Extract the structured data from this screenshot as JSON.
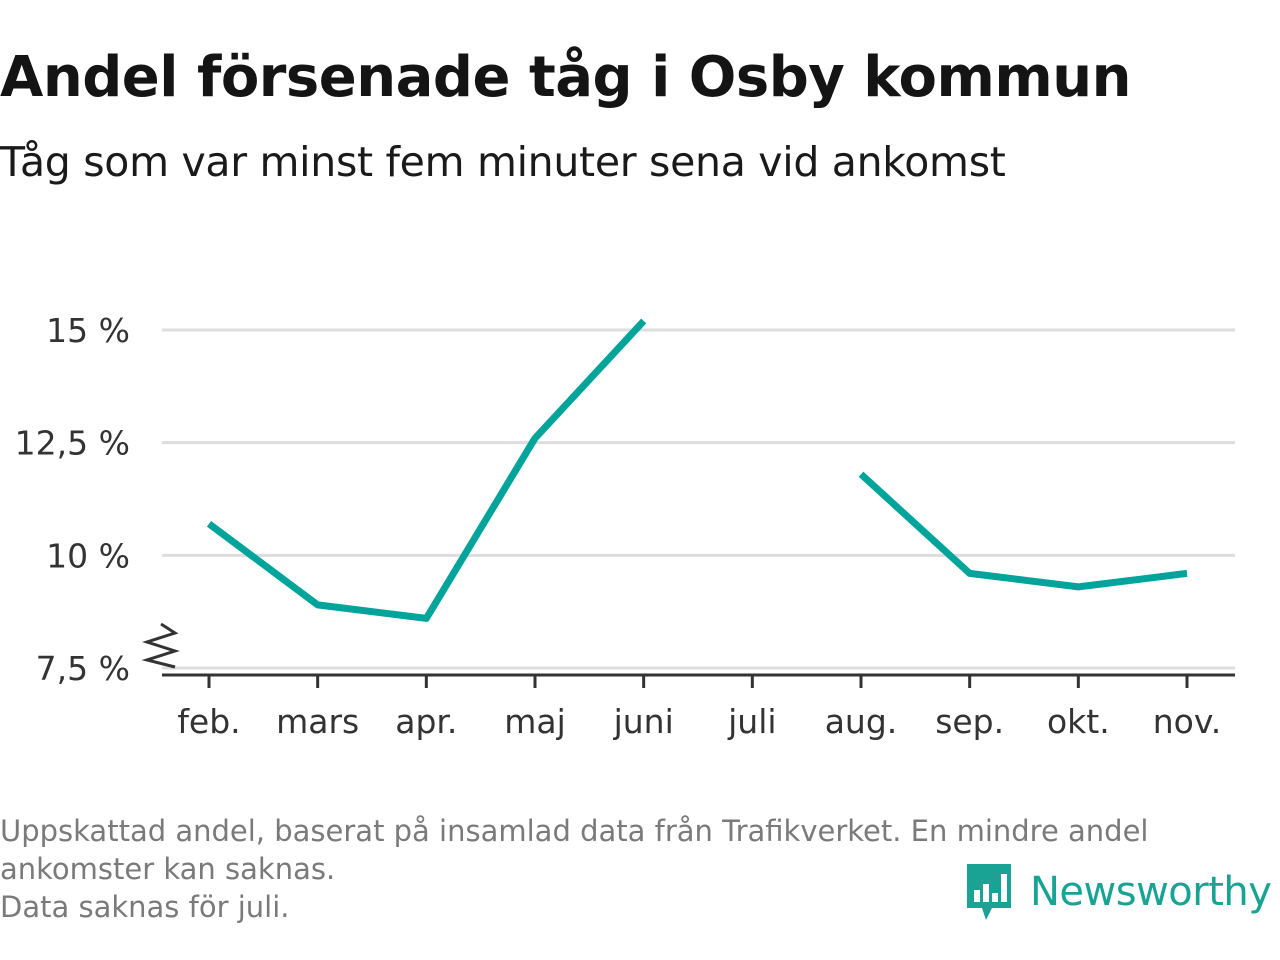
{
  "header": {
    "title": "Andel försenade tåg i Osby kommun",
    "subtitle": "Tåg som var minst fem minuter sena vid ankomst"
  },
  "footnote": {
    "lines": [
      "Uppskattad andel, baserat på insamlad data från Trafikverket. En mindre andel",
      "ankomster kan saknas.",
      "Data saknas för juli."
    ]
  },
  "brand": {
    "name": "Newsworthy",
    "icon": "newsworthy-logo-icon",
    "color": "#18a394"
  },
  "chart_data": {
    "type": "line",
    "title": "Andel försenade tåg i Osby kommun",
    "subtitle": "Tåg som var minst fem minuter sena vid ankomst",
    "categories": [
      "feb.",
      "mars",
      "apr.",
      "maj",
      "juni",
      "juli",
      "aug.",
      "sep.",
      "okt.",
      "nov."
    ],
    "series": [
      {
        "values": [
          10.7,
          8.9,
          8.6,
          12.6,
          15.2,
          null,
          11.8,
          9.6,
          9.3,
          9.6
        ],
        "color": "#00a49a"
      }
    ],
    "yticks": [
      7.5,
      10,
      12.5,
      15
    ],
    "ytick_labels": [
      "7,5 %",
      "10 %",
      "12,5 %",
      "15 %"
    ],
    "ylim": [
      7.5,
      15
    ],
    "xlabel": "",
    "ylabel": "",
    "grid": true,
    "axis_break": true,
    "gridline_color": "#dddddd",
    "axis_color": "#333333"
  }
}
